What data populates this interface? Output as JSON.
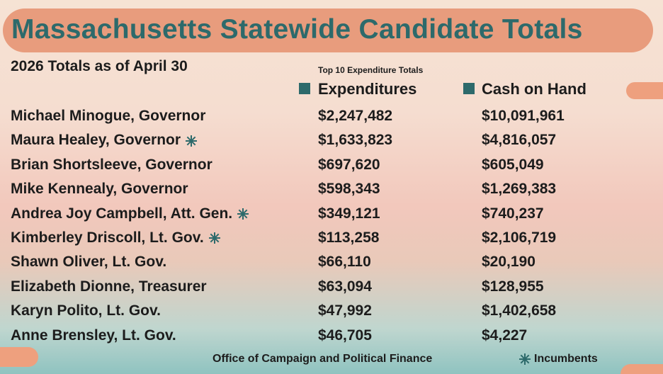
{
  "header": {
    "title": "Massachusetts Statewide Candidate Totals",
    "subtitle": "2026 Totals as of April 30"
  },
  "table": {
    "caption": "Top 10 Expenditure Totals",
    "columns": [
      "Expenditures",
      "Cash on Hand"
    ],
    "rows": [
      {
        "name": "Michael Minogue, Governor",
        "incumbent": false,
        "values": [
          "$2,247,482",
          "$10,091,961"
        ]
      },
      {
        "name": "Maura Healey, Governor",
        "incumbent": true,
        "values": [
          "$1,633,823",
          "$4,816,057"
        ]
      },
      {
        "name": "Brian Shortsleeve, Governor",
        "incumbent": false,
        "values": [
          "$697,620",
          "$605,049"
        ]
      },
      {
        "name": "Mike Kennealy, Governor",
        "incumbent": false,
        "values": [
          "$598,343",
          "$1,269,383"
        ]
      },
      {
        "name": "Andrea Joy Campbell, Att. Gen.",
        "incumbent": true,
        "values": [
          "$349,121",
          "$740,237"
        ]
      },
      {
        "name": "Kimberley Driscoll, Lt. Gov.",
        "incumbent": true,
        "values": [
          "$113,258",
          "$2,106,719"
        ]
      },
      {
        "name": "Shawn Oliver, Lt. Gov.",
        "incumbent": false,
        "values": [
          "$66,110",
          "$20,190"
        ]
      },
      {
        "name": "Elizabeth Dionne, Treasurer",
        "incumbent": false,
        "values": [
          "$63,094",
          "$128,955"
        ]
      },
      {
        "name": "Karyn Polito, Lt. Gov.",
        "incumbent": false,
        "values": [
          "$47,992",
          "$1,402,658"
        ]
      },
      {
        "name": "Anne Brensley, Lt. Gov.",
        "incumbent": false,
        "values": [
          "$46,705",
          "$4,227"
        ]
      }
    ]
  },
  "footer": {
    "source": "Office of Campaign and Political Finance",
    "legend": "Incumbents"
  }
}
